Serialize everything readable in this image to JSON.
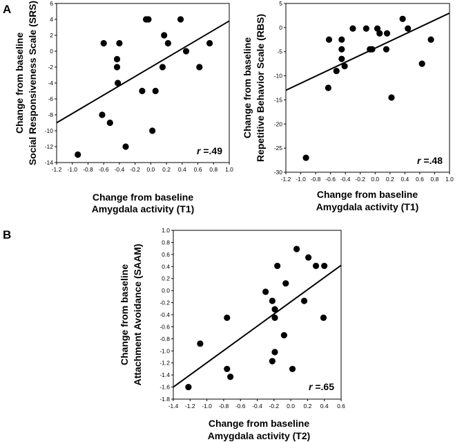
{
  "panels": {
    "a_label": "A",
    "b_label": "B"
  },
  "chart_data": [
    {
      "type": "scatter",
      "ylabel_lines": [
        "Change from baseline",
        "Social Responsiveness Scale (SRS)"
      ],
      "xlabel_lines": [
        "Change from baseline",
        "Amygdala activity (T1)"
      ],
      "r_prefix": "r",
      "r_value": "=.49",
      "xlim": [
        -1.2,
        1.0
      ],
      "ylim": [
        -14,
        6
      ],
      "xticks": [
        -1.2,
        -1.0,
        -0.8,
        -0.6,
        -0.4,
        -0.2,
        0.0,
        0.2,
        0.4,
        0.6,
        0.8,
        1.0
      ],
      "xtick_labels": [
        "-1.2",
        "-1.0",
        "-0.8",
        "-0.6",
        "-0.4",
        "-0.2",
        "0.0",
        "0.2",
        "0.4",
        "0.6",
        "0.8",
        "1.0"
      ],
      "yticks": [
        -14,
        -12,
        -10,
        -8,
        -6,
        -4,
        -2,
        0,
        2,
        4,
        6
      ],
      "ytick_labels": [
        "-14",
        "-12",
        "-10",
        "-8",
        "-6",
        "-4",
        "-2",
        "0",
        "2",
        "4",
        "6"
      ],
      "points": [
        {
          "x": -0.93,
          "y": -13.0
        },
        {
          "x": -0.62,
          "y": -8.0
        },
        {
          "x": -0.52,
          "y": -9.0
        },
        {
          "x": -0.6,
          "y": 1.0
        },
        {
          "x": -0.43,
          "y": -1.0
        },
        {
          "x": -0.43,
          "y": -2.0
        },
        {
          "x": -0.42,
          "y": -4.0
        },
        {
          "x": -0.4,
          "y": 1.0
        },
        {
          "x": -0.32,
          "y": -12.0
        },
        {
          "x": -0.11,
          "y": -5.0
        },
        {
          "x": -0.06,
          "y": 4.0
        },
        {
          "x": -0.03,
          "y": 4.0
        },
        {
          "x": 0.02,
          "y": -10.0
        },
        {
          "x": 0.06,
          "y": -5.0
        },
        {
          "x": 0.15,
          "y": -2.0
        },
        {
          "x": 0.17,
          "y": 2.0
        },
        {
          "x": 0.22,
          "y": 1.0
        },
        {
          "x": 0.38,
          "y": 4.0
        },
        {
          "x": 0.45,
          "y": 0.0
        },
        {
          "x": 0.62,
          "y": -2.0
        },
        {
          "x": 0.75,
          "y": 1.0
        }
      ],
      "fit_line": {
        "x": [
          -1.2,
          1.0
        ],
        "y": [
          -9.0,
          3.8
        ]
      }
    },
    {
      "type": "scatter",
      "ylabel_lines": [
        "Change from baseline",
        "Repetitive Behavior Scale (RBS)"
      ],
      "xlabel_lines": [
        "Change from baseline",
        "Amygdala activity (T1)"
      ],
      "r_prefix": "r",
      "r_value": "=.48",
      "xlim": [
        -1.2,
        1.0
      ],
      "ylim": [
        -30,
        5
      ],
      "xticks": [
        -1.2,
        -1.0,
        -0.8,
        -0.6,
        -0.4,
        -0.2,
        0.0,
        0.2,
        0.4,
        0.6,
        0.8,
        1.0
      ],
      "xtick_labels": [
        "-1.2",
        "-1.0",
        "-0.8",
        "-0.6",
        "-0.4",
        "-0.2",
        "0.0",
        "0.2",
        "0.4",
        "0.6",
        "0.8",
        "1.0"
      ],
      "yticks": [
        -30,
        -25,
        -20,
        -15,
        -10,
        -5,
        0,
        5
      ],
      "ytick_labels": [
        "-30",
        "-25",
        "-20",
        "-15",
        "-10",
        "-5",
        "0",
        "5"
      ],
      "points": [
        {
          "x": -0.93,
          "y": -27.0
        },
        {
          "x": -0.63,
          "y": -12.5
        },
        {
          "x": -0.62,
          "y": -2.5
        },
        {
          "x": -0.52,
          "y": -9.0
        },
        {
          "x": -0.45,
          "y": -2.5
        },
        {
          "x": -0.45,
          "y": -4.5
        },
        {
          "x": -0.45,
          "y": -6.5
        },
        {
          "x": -0.41,
          "y": -8.0
        },
        {
          "x": -0.3,
          "y": -0.2
        },
        {
          "x": -0.12,
          "y": -0.2
        },
        {
          "x": -0.07,
          "y": -4.5
        },
        {
          "x": -0.04,
          "y": -4.5
        },
        {
          "x": 0.03,
          "y": -0.2
        },
        {
          "x": 0.06,
          "y": -1.2
        },
        {
          "x": 0.15,
          "y": -4.5
        },
        {
          "x": 0.16,
          "y": -1.2
        },
        {
          "x": 0.22,
          "y": -14.5
        },
        {
          "x": 0.37,
          "y": 1.8
        },
        {
          "x": 0.44,
          "y": -0.2
        },
        {
          "x": 0.63,
          "y": -7.5
        },
        {
          "x": 0.75,
          "y": -2.5
        }
      ],
      "fit_line": {
        "x": [
          -1.2,
          1.0
        ],
        "y": [
          -13.0,
          3.0
        ]
      }
    },
    {
      "type": "scatter",
      "ylabel_lines": [
        "Change from baseline",
        "Attachment Avoidance (SAAM)"
      ],
      "xlabel_lines": [
        "Change from baseline",
        "Amygdala activity (T2)"
      ],
      "r_prefix": "r",
      "r_value": "=.65",
      "xlim": [
        -1.4,
        0.6
      ],
      "ylim": [
        -1.8,
        1.0
      ],
      "xticks": [
        -1.4,
        -1.2,
        -1.0,
        -0.8,
        -0.6,
        -0.4,
        -0.2,
        0.0,
        0.2,
        0.4,
        0.6
      ],
      "xtick_labels": [
        "-1.4",
        "-1.2",
        "-1.0",
        "-0.8",
        "-0.6",
        "-0.4",
        "-0.2",
        "0.0",
        "0.2",
        "0.4",
        "0.6"
      ],
      "yticks": [
        -1.8,
        -1.6,
        -1.4,
        -1.2,
        -1.0,
        -0.8,
        -0.6,
        -0.4,
        -0.2,
        0.0,
        0.2,
        0.4,
        0.6,
        0.8,
        1.0
      ],
      "ytick_labels": [
        "-1.8",
        "-1.6",
        "-1.4",
        "-1.2",
        "-1.0",
        "-0.8",
        "-0.6",
        "-0.4",
        "-0.2",
        "0.0",
        "0.2",
        "0.4",
        "0.6",
        "0.8",
        "1.0"
      ],
      "points": [
        {
          "x": -1.22,
          "y": -1.6
        },
        {
          "x": -1.08,
          "y": -0.88
        },
        {
          "x": -0.76,
          "y": -0.45
        },
        {
          "x": -0.76,
          "y": -1.3
        },
        {
          "x": -0.72,
          "y": -1.43
        },
        {
          "x": -0.3,
          "y": -0.02
        },
        {
          "x": -0.22,
          "y": -0.17
        },
        {
          "x": -0.22,
          "y": -1.17
        },
        {
          "x": -0.19,
          "y": -0.31
        },
        {
          "x": -0.19,
          "y": -0.45
        },
        {
          "x": -0.19,
          "y": -1.02
        },
        {
          "x": -0.16,
          "y": 0.41
        },
        {
          "x": -0.08,
          "y": -0.74
        },
        {
          "x": -0.06,
          "y": 0.12
        },
        {
          "x": 0.02,
          "y": -1.3
        },
        {
          "x": 0.07,
          "y": 0.69
        },
        {
          "x": 0.16,
          "y": -0.17
        },
        {
          "x": 0.21,
          "y": 0.55
        },
        {
          "x": 0.3,
          "y": 0.41
        },
        {
          "x": 0.39,
          "y": -0.45
        },
        {
          "x": 0.4,
          "y": 0.41
        }
      ],
      "fit_line": {
        "x": [
          -1.4,
          0.6
        ],
        "y": [
          -1.6,
          0.42
        ]
      }
    }
  ]
}
